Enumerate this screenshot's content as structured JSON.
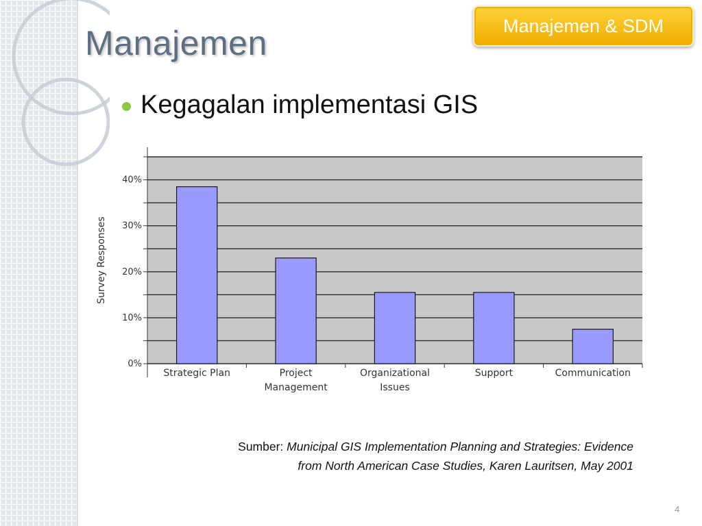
{
  "slide": {
    "title": "Manajemen",
    "badge": "Manajemen & SDM",
    "bullet": "Kegagalan implementasi GIS",
    "page_number": "4"
  },
  "source": {
    "label": "Sumber:",
    "text": "Municipal GIS Implementation Planning and Strategies: Evidence from North American Case Studies, Karen Lauritsen, May 2001"
  },
  "colors": {
    "bar": "#9999ff",
    "plot_background": "#c8c8c8",
    "badge": "#f5b800",
    "bullet": "#8dc63f",
    "title": "#5d6f80"
  },
  "chart_data": {
    "type": "bar",
    "title": "",
    "xlabel": "",
    "ylabel": "Survey Responses",
    "categories": [
      [
        "Strategic Plan"
      ],
      [
        "Project",
        "Management"
      ],
      [
        "Organizational",
        "Issues"
      ],
      [
        "Support"
      ],
      [
        "Communication"
      ]
    ],
    "values": [
      38.5,
      23,
      15.5,
      15.5,
      7.5
    ],
    "ylim": [
      0,
      45
    ],
    "yticks": [
      0,
      10,
      20,
      30,
      40
    ],
    "ytick_labels": [
      "0%",
      "10%",
      "20%",
      "30%",
      "40%"
    ],
    "grid": true,
    "legend": "none"
  }
}
